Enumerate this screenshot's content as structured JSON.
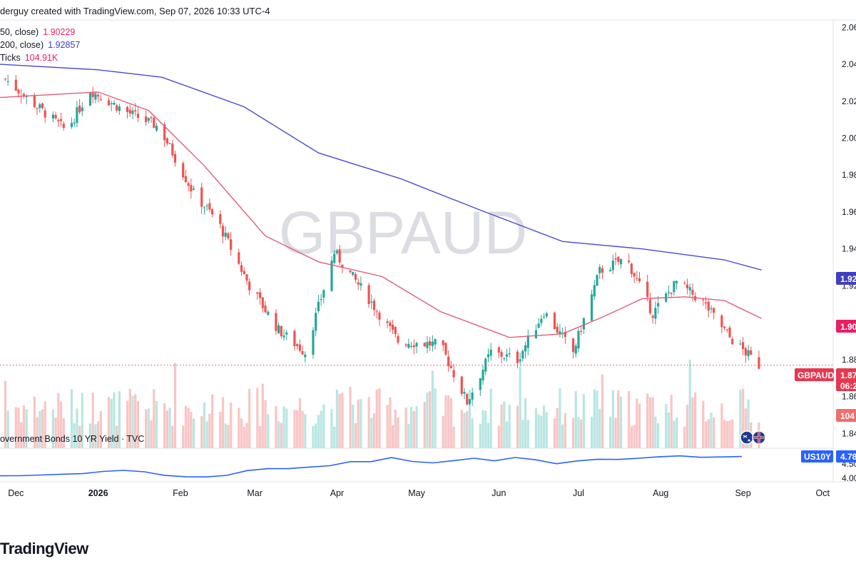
{
  "header": {
    "text": "derguy created with TradingView.com, Sep 07, 2026 10:33 UTC-4"
  },
  "legends": [
    {
      "label": "50, close)",
      "value": "1.90229",
      "color": "#e91e63"
    },
    {
      "label": "200, close)",
      "value": "1.92857",
      "color": "#3f3fbf"
    },
    {
      "label": "Ticks",
      "value": "104.91K",
      "color": "#e91e63"
    }
  ],
  "subchart_legend": "overnment Bonds 10 YR Yield · TVC",
  "watermark": "GBPAUD",
  "logo_text": "TradingView",
  "colors": {
    "up": "#26a69a",
    "down": "#ef5350",
    "ma50": "#e05c7a",
    "ma200": "#4a4ad6",
    "yield": "#2962ff",
    "vol_up": "#b8e6e1",
    "vol_down": "#f8c5c4"
  },
  "chart_data": [
    {
      "type": "candlestick",
      "symbol": "GBPAUD",
      "x_axis_labels": [
        "Dec",
        "2026",
        "Feb",
        "Mar",
        "Apr",
        "May",
        "Jun",
        "Jul",
        "Aug",
        "Sep",
        "Oct"
      ],
      "y_tick_labels": [
        "2.06",
        "2.04",
        "2.02",
        "2.00",
        "1.98",
        "1.96",
        "1.94",
        "1.92",
        "1.88",
        "1.86",
        "1.84"
      ],
      "ylim": [
        1.832,
        2.064
      ],
      "approx_closes": [
        {
          "date": "2025-11-27",
          "close": 2.032
        },
        {
          "date": "2025-12-05",
          "close": 2.022
        },
        {
          "date": "2025-12-20",
          "close": 2.004
        },
        {
          "date": "2025-12-29",
          "close": 2.026
        },
        {
          "date": "2026-01-12",
          "close": 2.014
        },
        {
          "date": "2026-01-24",
          "close": 2.006
        },
        {
          "date": "2026-02-06",
          "close": 1.97
        },
        {
          "date": "2026-02-15",
          "close": 1.955
        },
        {
          "date": "2026-02-27",
          "close": 1.92
        },
        {
          "date": "2026-03-10",
          "close": 1.896
        },
        {
          "date": "2026-03-20",
          "close": 1.884
        },
        {
          "date": "2026-03-31",
          "close": 1.938
        },
        {
          "date": "2026-04-13",
          "close": 1.913
        },
        {
          "date": "2026-04-24",
          "close": 1.89
        },
        {
          "date": "2026-05-10",
          "close": 1.888
        },
        {
          "date": "2026-05-20",
          "close": 1.857
        },
        {
          "date": "2026-05-29",
          "close": 1.884
        },
        {
          "date": "2026-06-08",
          "close": 1.88
        },
        {
          "date": "2026-06-18",
          "close": 1.906
        },
        {
          "date": "2026-06-29",
          "close": 1.884
        },
        {
          "date": "2026-07-09",
          "close": 1.928
        },
        {
          "date": "2026-07-19",
          "close": 1.935
        },
        {
          "date": "2026-07-29",
          "close": 1.905
        },
        {
          "date": "2026-08-07",
          "close": 1.922
        },
        {
          "date": "2026-08-17",
          "close": 1.911
        },
        {
          "date": "2026-08-27",
          "close": 1.892
        },
        {
          "date": "2026-09-07",
          "close": 1.877
        }
      ],
      "ma50": [
        {
          "date": "2025-11-25",
          "value": 2.022
        },
        {
          "date": "2026-01-01",
          "value": 2.025
        },
        {
          "date": "2026-01-20",
          "value": 2.015
        },
        {
          "date": "2026-02-10",
          "value": 1.985
        },
        {
          "date": "2026-03-05",
          "value": 1.947
        },
        {
          "date": "2026-03-25",
          "value": 1.933
        },
        {
          "date": "2026-04-18",
          "value": 1.925
        },
        {
          "date": "2026-05-10",
          "value": 1.906
        },
        {
          "date": "2026-06-05",
          "value": 1.892
        },
        {
          "date": "2026-06-25",
          "value": 1.894
        },
        {
          "date": "2026-07-10",
          "value": 1.903
        },
        {
          "date": "2026-07-25",
          "value": 1.913
        },
        {
          "date": "2026-08-10",
          "value": 1.914
        },
        {
          "date": "2026-08-25",
          "value": 1.912
        },
        {
          "date": "2026-09-08",
          "value": 1.90229
        }
      ],
      "ma200": [
        {
          "date": "2025-11-25",
          "value": 2.04
        },
        {
          "date": "2026-01-01",
          "value": 2.037
        },
        {
          "date": "2026-01-25",
          "value": 2.033
        },
        {
          "date": "2026-02-25",
          "value": 2.017
        },
        {
          "date": "2026-03-25",
          "value": 1.992
        },
        {
          "date": "2026-04-25",
          "value": 1.978
        },
        {
          "date": "2026-05-25",
          "value": 1.961
        },
        {
          "date": "2026-06-25",
          "value": 1.944
        },
        {
          "date": "2026-07-25",
          "value": 1.94
        },
        {
          "date": "2026-08-25",
          "value": 1.934
        },
        {
          "date": "2026-09-08",
          "value": 1.92857
        }
      ],
      "price_labels": [
        {
          "text": "1.92",
          "color": "#3f3fbf"
        },
        {
          "text": "1.90",
          "color": "#e91e63"
        },
        {
          "symbol": "GBPAUD",
          "text": "1.87",
          "countdown": "06:2",
          "color": "#e53950"
        },
        {
          "text": "104",
          "color": "#ef6f6c"
        }
      ],
      "volume_last": "104.91K"
    },
    {
      "type": "line",
      "series": [
        {
          "name": "US10Y",
          "last_label": "4.78"
        }
      ],
      "y_tick_labels": [
        "4.50",
        "4.00"
      ],
      "values_approx": [
        4.07,
        4.1,
        4.12,
        4.14,
        4.16,
        4.22,
        4.26,
        4.24,
        4.12,
        4.06,
        4.02,
        4.1,
        4.26,
        4.34,
        4.32,
        4.4,
        4.46,
        4.58,
        4.56,
        4.72,
        4.6,
        4.56,
        4.62,
        4.7,
        4.62,
        4.74,
        4.62,
        4.52,
        4.6,
        4.68,
        4.66,
        4.72,
        4.74,
        4.78,
        4.74,
        4.76,
        4.78
      ]
    }
  ]
}
